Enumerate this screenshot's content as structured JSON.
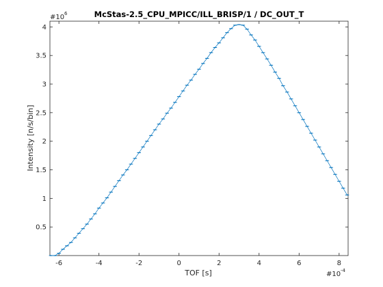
{
  "chart_data": {
    "type": "line",
    "title": "McStas-2.5_CPU_MPICC/ILL_BRISP/1 / DC_OUT_T",
    "xlabel": "TOF [s]",
    "ylabel": "Intensity [n/s/bin]",
    "x_exponent_base": "#10",
    "x_exponent_power": "-4",
    "y_exponent_base": "#10",
    "y_exponent_power": "6",
    "xlim": [
      -6.45,
      8.45
    ],
    "ylim": [
      0,
      4.1
    ],
    "x_ticks": [
      -6,
      -4,
      -2,
      0,
      2,
      4,
      6,
      8
    ],
    "y_ticks": [
      0.5,
      1,
      1.5,
      2,
      2.5,
      3,
      3.5,
      4
    ],
    "x_tick_labels": [
      "-6",
      "-4",
      "-2",
      "0",
      "2",
      "4",
      "6",
      "8"
    ],
    "y_tick_labels": [
      "0.5",
      "1",
      "1.5",
      "2",
      "2.5",
      "3",
      "3.5",
      "4"
    ],
    "grid": false,
    "series_color": "#0072bd",
    "series": [
      {
        "x": [
          -6.4,
          -6.2,
          -6.0,
          -5.8,
          -5.6,
          -5.4,
          -5.2,
          -5.0,
          -4.8,
          -4.6,
          -4.4,
          -4.2,
          -4.0,
          -3.8,
          -3.6,
          -3.4,
          -3.2,
          -3.0,
          -2.8,
          -2.6,
          -2.4,
          -2.2,
          -2.0,
          -1.8,
          -1.6,
          -1.4,
          -1.2,
          -1.0,
          -0.8,
          -0.6,
          -0.4,
          -0.2,
          0.0,
          0.2,
          0.4,
          0.6,
          0.8,
          1.0,
          1.2,
          1.4,
          1.6,
          1.8,
          2.0,
          2.2,
          2.4,
          2.6,
          2.8,
          3.0,
          3.2,
          3.4,
          3.6,
          3.8,
          4.0,
          4.2,
          4.4,
          4.6,
          4.8,
          5.0,
          5.2,
          5.4,
          5.6,
          5.8,
          6.0,
          6.2,
          6.4,
          6.6,
          6.8,
          7.0,
          7.2,
          7.4,
          7.6,
          7.8,
          8.0,
          8.2,
          8.4
        ],
        "y": [
          0.0,
          0.0,
          0.04,
          0.11,
          0.17,
          0.23,
          0.31,
          0.39,
          0.47,
          0.55,
          0.64,
          0.73,
          0.83,
          0.92,
          1.01,
          1.11,
          1.21,
          1.31,
          1.41,
          1.5,
          1.6,
          1.7,
          1.8,
          1.9,
          2.0,
          2.1,
          2.2,
          2.3,
          2.39,
          2.49,
          2.58,
          2.68,
          2.78,
          2.88,
          2.98,
          3.07,
          3.17,
          3.26,
          3.36,
          3.45,
          3.55,
          3.64,
          3.72,
          3.81,
          3.9,
          3.97,
          4.03,
          4.04,
          4.03,
          3.96,
          3.86,
          3.77,
          3.66,
          3.55,
          3.44,
          3.33,
          3.21,
          3.1,
          2.97,
          2.86,
          2.74,
          2.62,
          2.5,
          2.38,
          2.26,
          2.14,
          2.02,
          1.9,
          1.78,
          1.66,
          1.54,
          1.42,
          1.3,
          1.18,
          1.06
        ]
      }
    ]
  }
}
